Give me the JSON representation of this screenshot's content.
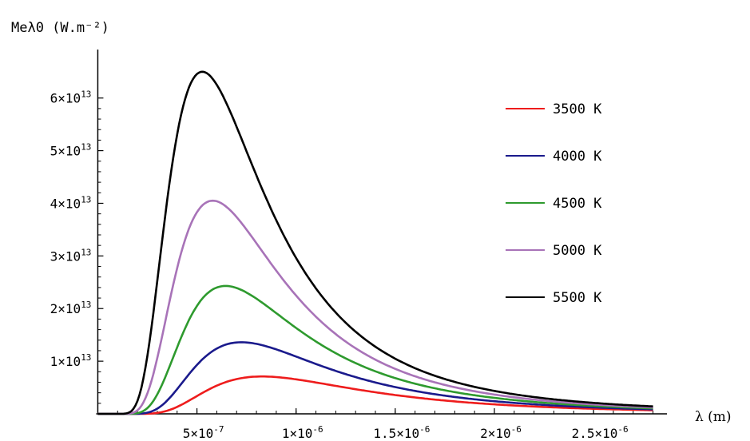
{
  "chart_data": {
    "type": "line",
    "title": "",
    "ylabel": "Meλ0 (W.m⁻²)",
    "xlabel": "λ (m)",
    "xlim": [
      -3e-08,
      2.85e-06
    ],
    "ylim": [
      0,
      68000000000000.0
    ],
    "x_ticks": [
      {
        "value": 5e-07,
        "mantissa": "5",
        "exp": "-7"
      },
      {
        "value": 1e-06,
        "mantissa": "1",
        "exp": "-6"
      },
      {
        "value": 1.5e-06,
        "mantissa": "1.5",
        "exp": "-6"
      },
      {
        "value": 2e-06,
        "mantissa": "2",
        "exp": "-6"
      },
      {
        "value": 2.5e-06,
        "mantissa": "2.5",
        "exp": "-6"
      }
    ],
    "y_ticks": [
      {
        "value": 10000000000000.0,
        "mantissa": "1",
        "exp": "13"
      },
      {
        "value": 20000000000000.0,
        "mantissa": "2",
        "exp": "13"
      },
      {
        "value": 30000000000000.0,
        "mantissa": "3",
        "exp": "13"
      },
      {
        "value": 40000000000000.0,
        "mantissa": "4",
        "exp": "13"
      },
      {
        "value": 50000000000000.0,
        "mantissa": "5",
        "exp": "13"
      },
      {
        "value": 60000000000000.0,
        "mantissa": "6",
        "exp": "13"
      }
    ],
    "grid": false,
    "legend_position": "top-right",
    "series": [
      {
        "name": "3500 K",
        "T": 3500,
        "color": "#ee1c1c",
        "peak": {
          "x": 8.3e-07,
          "y": 7100000000000.0
        }
      },
      {
        "name": "4000 K",
        "T": 4000,
        "color": "#1a1a8c",
        "peak": {
          "x": 7.2e-07,
          "y": 13600000000000.0
        }
      },
      {
        "name": "4500 K",
        "T": 4500,
        "color": "#2e9a2e",
        "peak": {
          "x": 6.4e-07,
          "y": 24300000000000.0
        }
      },
      {
        "name": "5000 K",
        "T": 5000,
        "color": "#a873b8",
        "peak": {
          "x": 5.8e-07,
          "y": 40500000000000.0
        }
      },
      {
        "name": "5500 K",
        "T": 5500,
        "color": "#000000",
        "peak": {
          "x": 5.3e-07,
          "y": 65000000000000.0
        }
      }
    ]
  }
}
